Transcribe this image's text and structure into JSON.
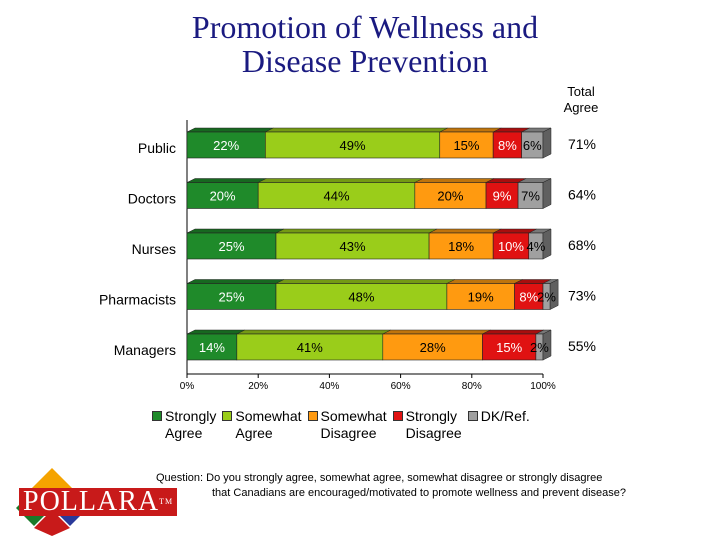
{
  "title_line1": "Promotion of Wellness and",
  "title_line2": "Disease Prevention",
  "total_agree_header_line1": "Total",
  "total_agree_header_line2": "Agree",
  "question_line1": "Question: Do you strongly agree, somewhat agree, somewhat disagree or strongly disagree",
  "question_line2": "that Canadians are encouraged/motivated to promote wellness and prevent disease?",
  "logo_text": "POLLARA",
  "logo_tm": "TM",
  "chart_data": {
    "type": "bar",
    "orientation": "horizontal",
    "stacked": true,
    "categories": [
      "Public",
      "Doctors",
      "Nurses",
      "Pharmacists",
      "Managers"
    ],
    "series": [
      {
        "name": "Strongly Agree",
        "legend_line1": "Strongly",
        "legend_line2": "Agree",
        "color": "#1f8a2a",
        "values": [
          22,
          20,
          25,
          25,
          14
        ],
        "labels": [
          "22%",
          "20%",
          "25%",
          "25%",
          "14%"
        ]
      },
      {
        "name": "Somewhat Agree",
        "legend_line1": "Somewhat",
        "legend_line2": "Agree",
        "color": "#9acd1a",
        "values": [
          49,
          44,
          43,
          48,
          41
        ],
        "labels": [
          "49%",
          "44%",
          "43%",
          "48%",
          "41%"
        ]
      },
      {
        "name": "Somewhat Disagree",
        "legend_line1": "Somewhat",
        "legend_line2": "Disagree",
        "color": "#ff9a10",
        "values": [
          15,
          20,
          18,
          19,
          28
        ],
        "labels": [
          "15%",
          "20%",
          "18%",
          "19%",
          "28%"
        ]
      },
      {
        "name": "Strongly Disagree",
        "legend_line1": "Strongly",
        "legend_line2": "Disagree",
        "color": "#e01212",
        "values": [
          8,
          9,
          10,
          8,
          15
        ],
        "labels": [
          "8%",
          "9%",
          "10%",
          "8%",
          "15%"
        ]
      },
      {
        "name": "DK/Ref.",
        "legend_line1": "DK/Ref.",
        "legend_line2": "",
        "color": "#a0a0a0",
        "values": [
          6,
          7,
          4,
          2,
          2
        ],
        "labels": [
          "6%",
          "7%",
          "4%",
          "2%",
          "2%"
        ]
      }
    ],
    "total_agree": [
      "71%",
      "64%",
      "68%",
      "73%",
      "55%"
    ],
    "x_ticks": [
      "0%",
      "20%",
      "40%",
      "60%",
      "80%",
      "100%"
    ],
    "xlim": [
      0,
      100
    ],
    "legend_position": "bottom",
    "grid": false
  }
}
